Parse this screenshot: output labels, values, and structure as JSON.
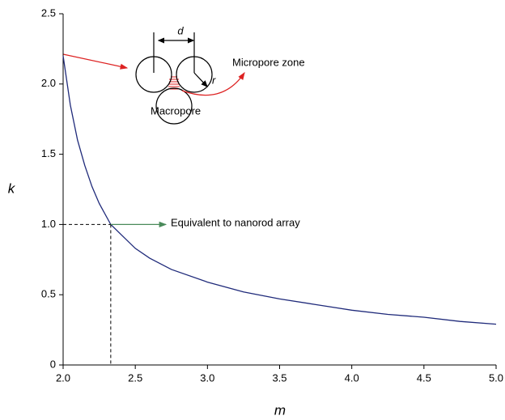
{
  "chart_data": {
    "type": "line",
    "x_label": "m",
    "y_label": "k",
    "annotations": [
      "d",
      "r",
      "Micropore zone",
      "Macropore",
      "Equivalent to nanorod array"
    ],
    "x": [
      2.0,
      2.05,
      2.1,
      2.15,
      2.2,
      2.25,
      2.33,
      2.4,
      2.5,
      2.6,
      2.75,
      3.0,
      3.25,
      3.5,
      3.75,
      4.0,
      4.25,
      4.5,
      4.75,
      5.0
    ],
    "series": [
      {
        "color": "#1f2a7a",
        "values": [
          2.2,
          1.85,
          1.6,
          1.42,
          1.27,
          1.15,
          1.0,
          0.93,
          0.83,
          0.76,
          0.68,
          0.59,
          0.52,
          0.47,
          0.43,
          0.39,
          0.36,
          0.34,
          0.31,
          0.29
        ]
      }
    ],
    "marker": {
      "x": 2.33,
      "y": 1.0
    },
    "xlim": [
      2.0,
      5.0
    ],
    "ylim": [
      0,
      2.5
    ],
    "xticks": [
      {
        "value": 2,
        "label": "2.0"
      },
      2.5,
      {
        "value": 3,
        "label": "3.0"
      },
      3.5,
      {
        "value": 4,
        "label": "4.0"
      },
      4.5,
      {
        "value": 5,
        "label": "5.0"
      }
    ],
    "yticks": [
      0,
      0.5,
      {
        "value": 1,
        "label": "1.0"
      },
      1.5,
      {
        "value": 2,
        "label": "2.0"
      },
      2.5
    ]
  }
}
